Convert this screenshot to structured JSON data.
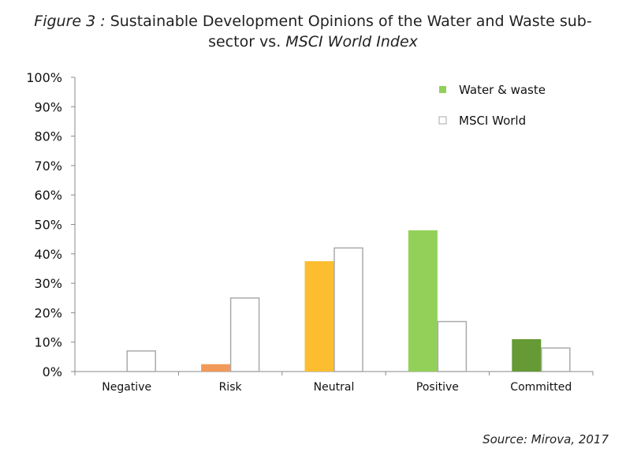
{
  "title": {
    "figure_label": "Figure 3 :",
    "line1_text": "Sustainable Development Opinions of the Water and Waste sub-",
    "line2_text": "sector vs.",
    "line2_italic": "MSCI World Index"
  },
  "source": "Source: Mirova, 2017",
  "chart_data": {
    "type": "bar",
    "categories": [
      "Negative",
      "Risk",
      "Neutral",
      "Positive",
      "Committed"
    ],
    "series": [
      {
        "name": "Water & waste",
        "values": [
          0,
          2.5,
          37.5,
          48,
          11
        ],
        "colors": [
          "#f2995a",
          "#f2995a",
          "#fdbd31",
          "#93d05a",
          "#659a35"
        ],
        "legend_color": "#93d05a"
      },
      {
        "name": "MSCI World",
        "values": [
          7,
          25,
          42,
          17,
          8
        ],
        "colors": [
          "#ffffff",
          "#ffffff",
          "#ffffff",
          "#ffffff",
          "#ffffff"
        ],
        "legend_color": "#ffffff"
      }
    ],
    "ylim": [
      0,
      100
    ],
    "yticks": [
      0,
      10,
      20,
      30,
      40,
      50,
      60,
      70,
      80,
      90,
      100
    ],
    "ytick_labels": [
      "0%",
      "10%",
      "20%",
      "30%",
      "40%",
      "50%",
      "60%",
      "70%",
      "80%",
      "90%",
      "100%"
    ],
    "xlabel": "",
    "ylabel": "",
    "grid": false,
    "legend_position": "top-right"
  }
}
